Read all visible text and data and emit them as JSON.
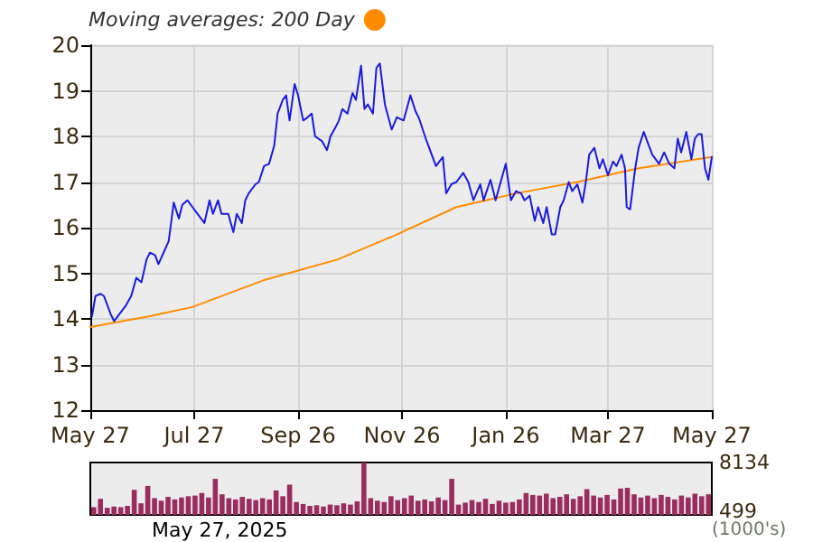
{
  "chart_data": [
    {
      "type": "line",
      "xlim": [
        "2024-05-27",
        "2025-05-27"
      ],
      "xticks": [
        {
          "value": "2024-05-27",
          "label": "May 27"
        },
        {
          "value": "2024-07-27",
          "label": "Jul 27"
        },
        {
          "value": "2024-09-26",
          "label": "Sep 26"
        },
        {
          "value": "2024-11-26",
          "label": "Nov 26"
        },
        {
          "value": "2025-01-26",
          "label": "Jan 26"
        },
        {
          "value": "2025-03-27",
          "label": "Mar 27"
        },
        {
          "value": "2025-05-27",
          "label": "May 27"
        }
      ],
      "ylim": [
        12,
        20
      ],
      "yticks": [
        12,
        13,
        14,
        15,
        16,
        17,
        18,
        19,
        20
      ],
      "grid": true,
      "legend": "top left",
      "marker": "none",
      "series": [
        {
          "color": "#1a1ae0",
          "x": [
            "2024-05-28",
            "2024-05-30",
            "2024-06-02",
            "2024-06-04",
            "2024-06-08",
            "2024-06-10",
            "2024-06-13",
            "2024-06-17",
            "2024-06-20",
            "2024-06-23",
            "2024-06-26",
            "2024-06-29",
            "2024-07-01",
            "2024-07-04",
            "2024-07-06",
            "2024-07-09",
            "2024-07-12",
            "2024-07-15",
            "2024-07-18",
            "2024-07-20",
            "2024-07-23",
            "2024-07-26",
            "2024-07-28",
            "2024-07-31",
            "2024-08-02",
            "2024-08-05",
            "2024-08-07",
            "2024-08-10",
            "2024-08-12",
            "2024-08-16",
            "2024-08-19",
            "2024-08-21",
            "2024-08-24",
            "2024-08-26",
            "2024-08-28",
            "2024-09-01",
            "2024-09-03",
            "2024-09-06",
            "2024-09-09",
            "2024-09-12",
            "2024-09-14",
            "2024-09-17",
            "2024-09-19",
            "2024-09-21",
            "2024-09-24",
            "2024-09-26",
            "2024-09-29",
            "2024-10-01",
            "2024-10-04",
            "2024-10-06",
            "2024-10-10",
            "2024-10-13",
            "2024-10-15",
            "2024-10-18",
            "2024-10-20",
            "2024-10-22",
            "2024-10-25",
            "2024-10-28",
            "2024-10-30",
            "2024-11-02",
            "2024-11-04",
            "2024-11-06",
            "2024-11-09",
            "2024-11-11",
            "2024-11-13",
            "2024-11-16",
            "2024-11-20",
            "2024-11-23",
            "2024-11-27",
            "2024-12-01",
            "2024-12-04",
            "2024-12-06",
            "2024-12-10",
            "2024-12-12",
            "2024-12-16",
            "2024-12-20",
            "2024-12-22",
            "2024-12-25",
            "2024-12-28",
            "2025-01-01",
            "2025-01-04",
            "2025-01-07",
            "2025-01-11",
            "2025-01-13",
            "2025-01-17",
            "2025-01-20",
            "2025-01-23",
            "2025-01-26",
            "2025-01-29",
            "2025-02-01",
            "2025-02-04",
            "2025-02-06",
            "2025-02-09",
            "2025-02-12",
            "2025-02-14",
            "2025-02-17",
            "2025-02-19",
            "2025-02-22",
            "2025-02-24",
            "2025-02-27",
            "2025-03-01",
            "2025-03-04",
            "2025-03-06",
            "2025-03-09",
            "2025-03-12",
            "2025-03-14",
            "2025-03-16",
            "2025-03-19",
            "2025-03-22",
            "2025-03-24",
            "2025-03-27",
            "2025-03-30",
            "2025-04-01",
            "2025-04-04",
            "2025-04-06",
            "2025-04-07",
            "2025-04-09",
            "2025-04-12",
            "2025-04-14",
            "2025-04-17",
            "2025-04-20",
            "2025-04-22",
            "2025-04-26",
            "2025-04-29",
            "2025-05-02",
            "2025-05-05",
            "2025-05-07",
            "2025-05-09",
            "2025-05-12",
            "2025-05-15",
            "2025-05-17",
            "2025-05-19",
            "2025-05-21",
            "2025-05-23",
            "2025-05-25",
            "2025-05-27"
          ],
          "values": [
            14.06,
            14.5,
            14.55,
            14.5,
            14.1,
            13.95,
            14.1,
            14.3,
            14.5,
            14.9,
            14.8,
            15.3,
            15.45,
            15.4,
            15.2,
            15.45,
            15.7,
            16.55,
            16.2,
            16.5,
            16.6,
            16.45,
            16.35,
            16.2,
            16.1,
            16.6,
            16.3,
            16.6,
            16.3,
            16.3,
            15.9,
            16.3,
            16.1,
            16.6,
            16.75,
            16.95,
            17.0,
            17.35,
            17.4,
            17.8,
            18.5,
            18.8,
            18.9,
            18.35,
            19.15,
            18.9,
            18.35,
            18.4,
            18.5,
            18.0,
            17.9,
            17.7,
            18.0,
            18.2,
            18.35,
            18.6,
            18.5,
            18.95,
            18.8,
            19.55,
            18.6,
            18.7,
            18.5,
            19.5,
            19.6,
            18.7,
            18.15,
            18.42,
            18.35,
            18.9,
            18.55,
            18.4,
            17.95,
            17.75,
            17.35,
            17.55,
            16.75,
            16.95,
            17.0,
            17.2,
            17.0,
            16.6,
            16.95,
            16.6,
            17.05,
            16.6,
            17.0,
            17.4,
            16.6,
            16.8,
            16.75,
            16.6,
            16.7,
            16.15,
            16.45,
            16.1,
            16.45,
            15.85,
            15.85,
            16.45,
            16.6,
            17.0,
            16.8,
            16.95,
            16.55,
            17.0,
            17.6,
            17.75,
            17.3,
            17.5,
            17.15,
            17.45,
            17.35,
            17.6,
            17.3,
            16.45,
            16.4,
            17.3,
            17.75,
            18.1,
            17.8,
            17.6,
            17.4,
            17.65,
            17.4,
            17.3,
            17.95,
            17.65,
            18.1,
            17.5,
            17.95,
            18.05,
            18.05,
            17.3,
            17.05,
            17.55
          ]
        },
        {
          "name": "Moving averages: 200 Day",
          "color": "#ff8c00",
          "x": [
            "2024-05-27",
            "2024-07-01",
            "2024-07-26",
            "2024-09-06",
            "2024-10-19",
            "2024-11-23",
            "2024-12-28",
            "2025-02-01",
            "2025-03-09",
            "2025-04-14",
            "2025-05-27"
          ],
          "values": [
            13.82,
            14.06,
            14.26,
            14.85,
            15.3,
            15.85,
            16.45,
            16.75,
            17.0,
            17.3,
            17.55
          ]
        }
      ]
    },
    {
      "type": "bar",
      "categories": [
        null,
        null,
        null,
        null,
        null,
        null,
        null,
        null,
        null,
        null,
        null,
        null,
        null,
        null,
        null,
        null,
        null,
        null,
        null,
        null,
        null,
        null,
        null,
        null,
        null,
        null,
        null,
        null,
        null,
        null,
        null,
        null,
        null,
        null,
        null,
        null,
        null,
        null,
        null,
        null,
        null,
        null,
        null,
        null,
        null,
        null,
        null,
        null,
        null,
        null,
        null,
        null,
        null,
        null,
        null,
        null,
        null,
        null,
        null,
        null,
        null,
        null,
        null,
        null,
        null,
        null,
        null,
        null,
        null,
        null,
        null,
        null,
        null,
        null,
        null,
        null,
        null,
        null,
        null,
        null,
        null,
        null,
        null,
        null,
        null,
        null,
        null,
        null,
        null,
        null,
        null,
        null
      ],
      "values": [
        1200,
        2500,
        1100,
        1300,
        1200,
        1400,
        3900,
        1800,
        4500,
        2600,
        2200,
        2800,
        2400,
        2700,
        2900,
        3000,
        3400,
        2700,
        5600,
        3200,
        2600,
        2400,
        2800,
        2500,
        2300,
        2600,
        2400,
        3800,
        2900,
        4700,
        2000,
        1700,
        1400,
        1500,
        1300,
        1600,
        1500,
        1800,
        1600,
        2100,
        8134,
        2600,
        2200,
        2000,
        2900,
        2300,
        2600,
        3000,
        2200,
        2400,
        2100,
        2700,
        2300,
        5600,
        1600,
        1900,
        2300,
        2000,
        2500,
        1700,
        2200,
        1900,
        2000,
        2400,
        3400,
        3100,
        3000,
        3300,
        2600,
        2800,
        3200,
        2500,
        2900,
        4000,
        3000,
        2700,
        3100,
        2400,
        4100,
        4200,
        3200,
        2700,
        3000,
        2600,
        3100,
        2800,
        2400,
        3000,
        2700,
        3300,
        2900,
        3200
      ],
      "color": "#9b2d5e",
      "ylim": [
        0,
        8134
      ],
      "yticks": [
        499,
        8134
      ],
      "ylabel": "(1000's)",
      "tick_labels": "y",
      "grid": false,
      "annotations": [
        "May 27, 2025"
      ]
    }
  ]
}
